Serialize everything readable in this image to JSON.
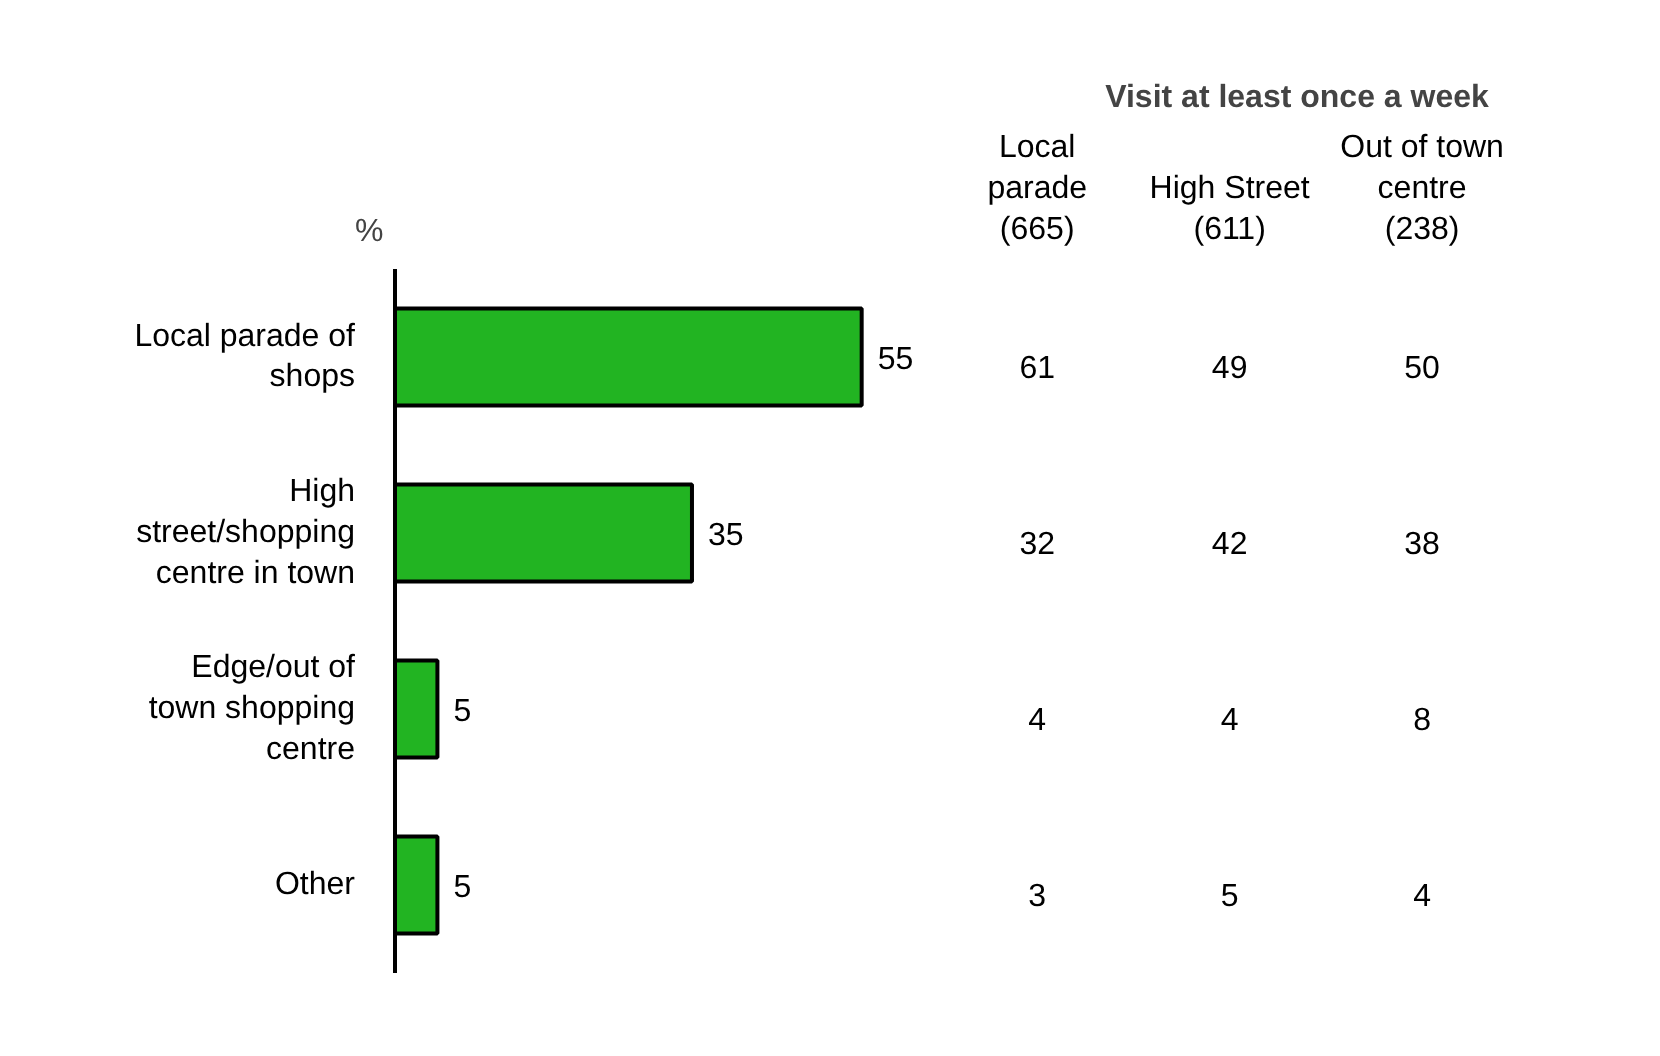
{
  "chart_data": [
    {
      "type": "bar",
      "orientation": "horizontal",
      "ylabel": "%",
      "categories": [
        "Local parade of shops",
        "High street/shopping centre in town",
        "Edge/out of town shopping centre",
        "Other"
      ],
      "values": [
        55,
        35,
        5,
        5
      ],
      "color": "#22b422",
      "data_labels": true
    },
    {
      "type": "heatmap",
      "title": "Visit at least once a week",
      "categories": [
        "Local parade (665)",
        "High Street (611)",
        "Out of town centre (238)"
      ],
      "y_categories": [
        null,
        null,
        null,
        null
      ],
      "data_labels": true,
      "cells": [
        [
          61,
          49,
          50
        ],
        [
          32,
          42,
          38
        ],
        [
          4,
          4,
          8
        ],
        [
          3,
          5,
          4
        ]
      ]
    }
  ]
}
